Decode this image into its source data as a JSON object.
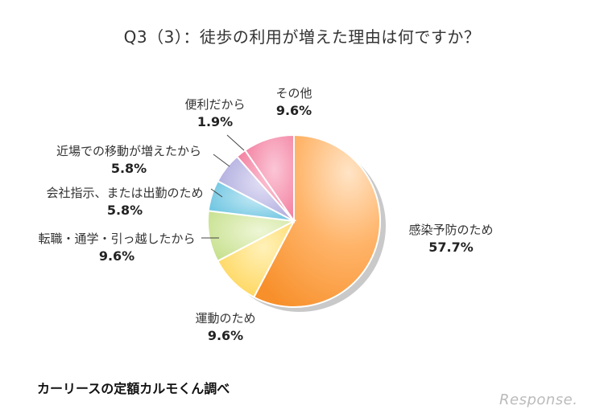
{
  "title": "Q3（3）：徒歩の利用が増えた理由は何ですか？",
  "chart_data": {
    "type": "pie",
    "title": "Q3（3）：徒歩の利用が増えた理由は何ですか？",
    "slices": [
      {
        "label": "感染予防のため",
        "value": 57.7,
        "display": "57.7%",
        "color": "#f99a3a"
      },
      {
        "label": "運動のため",
        "value": 9.6,
        "display": "9.6%",
        "color": "#ffd04f"
      },
      {
        "label": "転職・通学・引っ越したから",
        "value": 9.6,
        "display": "9.6%",
        "color": "#c8e08e"
      },
      {
        "label": "会社指示、または出勤のため",
        "value": 5.8,
        "display": "5.8%",
        "color": "#6cc4e0"
      },
      {
        "label": "近場での移動が増えたから",
        "value": 5.8,
        "display": "5.8%",
        "color": "#a9a6dc"
      },
      {
        "label": "便利だから",
        "value": 1.9,
        "display": "1.9%",
        "color": "#f27ea2"
      },
      {
        "label": "その他",
        "value": 9.6,
        "display": "9.6%",
        "color": "#f48aa6"
      }
    ]
  },
  "source": "カーリースの定額カルモくん調べ",
  "brand": "Response."
}
